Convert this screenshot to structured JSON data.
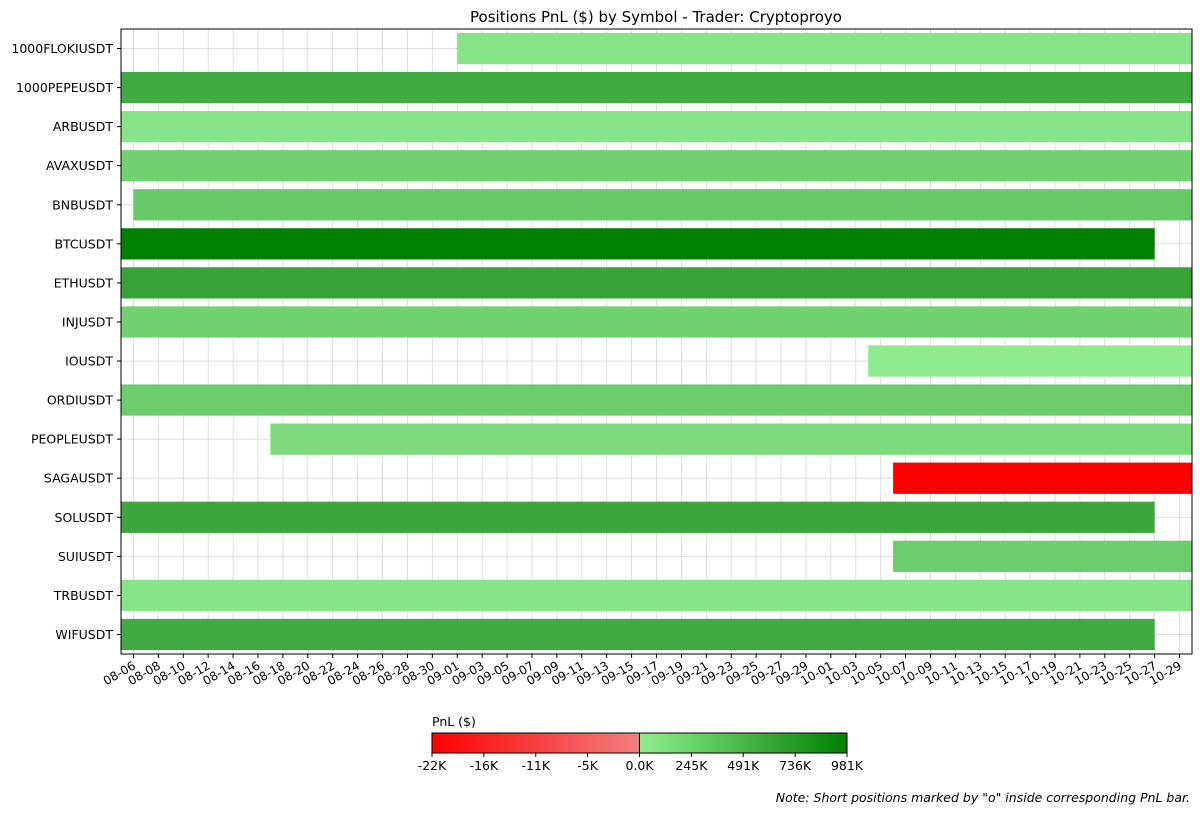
{
  "chart_data": {
    "type": "bar",
    "orientation": "horizontal",
    "title": "Positions PnL ($) by Symbol - Trader: Cryptoproyo",
    "xlabel": "",
    "ylabel": "",
    "grid": true,
    "x_axis": {
      "type": "date",
      "range": [
        "2024-08-05",
        "2024-10-30"
      ],
      "tick_labels": [
        "08-06",
        "08-08",
        "08-10",
        "08-12",
        "08-14",
        "08-16",
        "08-18",
        "08-20",
        "08-22",
        "08-24",
        "08-26",
        "08-28",
        "08-30",
        "09-01",
        "09-03",
        "09-05",
        "09-07",
        "09-09",
        "09-11",
        "09-13",
        "09-15",
        "09-17",
        "09-19",
        "09-21",
        "09-23",
        "09-25",
        "09-27",
        "09-29",
        "10-01",
        "10-03",
        "10-05",
        "10-07",
        "10-09",
        "10-11",
        "10-13",
        "10-15",
        "10-17",
        "10-19",
        "10-21",
        "10-23",
        "10-25",
        "10-27",
        "10-29"
      ]
    },
    "categories": [
      "1000FLOKIUSDT",
      "1000PEPEUSDT",
      "ARBUSDT",
      "AVAXUSDT",
      "BNBUSDT",
      "BTCUSDT",
      "ETHUSDT",
      "INJUSDT",
      "IOUSDT",
      "ORDIUSDT",
      "PEOPLEUSDT",
      "SAGAUSDT",
      "SOLUSDT",
      "SUIUSDT",
      "TRBUSDT",
      "WIFUSDT"
    ],
    "bars": [
      {
        "symbol": "1000FLOKIUSDT",
        "start": "2024-09-01",
        "end": "2024-10-30",
        "color": "#88e488"
      },
      {
        "symbol": "1000PEPEUSDT",
        "start": "2024-08-05",
        "end": "2024-10-30",
        "color": "#42aa42"
      },
      {
        "symbol": "ARBUSDT",
        "start": "2024-08-05",
        "end": "2024-10-30",
        "color": "#88e488"
      },
      {
        "symbol": "AVAXUSDT",
        "start": "2024-08-05",
        "end": "2024-10-30",
        "color": "#72d272"
      },
      {
        "symbol": "BNBUSDT",
        "start": "2024-08-06",
        "end": "2024-10-30",
        "color": "#68c968"
      },
      {
        "symbol": "BTCUSDT",
        "start": "2024-08-05",
        "end": "2024-10-27",
        "color": "#008000"
      },
      {
        "symbol": "ETHUSDT",
        "start": "2024-08-05",
        "end": "2024-10-30",
        "color": "#38a238"
      },
      {
        "symbol": "INJUSDT",
        "start": "2024-08-05",
        "end": "2024-10-30",
        "color": "#72d272"
      },
      {
        "symbol": "IOUSDT",
        "start": "2024-10-04",
        "end": "2024-10-30",
        "color": "#8eec8e"
      },
      {
        "symbol": "ORDIUSDT",
        "start": "2024-08-05",
        "end": "2024-10-30",
        "color": "#6ccd6c"
      },
      {
        "symbol": "PEOPLEUSDT",
        "start": "2024-08-17",
        "end": "2024-10-30",
        "color": "#7ddb7d"
      },
      {
        "symbol": "SAGAUSDT",
        "start": "2024-10-06",
        "end": "2024-10-30",
        "color": "#ff0000"
      },
      {
        "symbol": "SOLUSDT",
        "start": "2024-08-05",
        "end": "2024-10-27",
        "color": "#3ea63e"
      },
      {
        "symbol": "SUIUSDT",
        "start": "2024-10-06",
        "end": "2024-10-30",
        "color": "#6bcd6b"
      },
      {
        "symbol": "TRBUSDT",
        "start": "2024-08-05",
        "end": "2024-10-30",
        "color": "#88e488"
      },
      {
        "symbol": "WIFUSDT",
        "start": "2024-08-05",
        "end": "2024-10-27",
        "color": "#42aa42"
      }
    ],
    "colorbar": {
      "label": "PnL ($)",
      "tick_labels": [
        "-22K",
        "-16K",
        "-11K",
        "-5K",
        "0.0K",
        "245K",
        "491K",
        "736K",
        "981K"
      ],
      "negative_gradient": [
        "#ff0000",
        "#f08080"
      ],
      "positive_gradient": [
        "#90ee90",
        "#008000"
      ]
    },
    "note": "Note: Short positions marked by \"o\" inside corresponding PnL bar."
  }
}
